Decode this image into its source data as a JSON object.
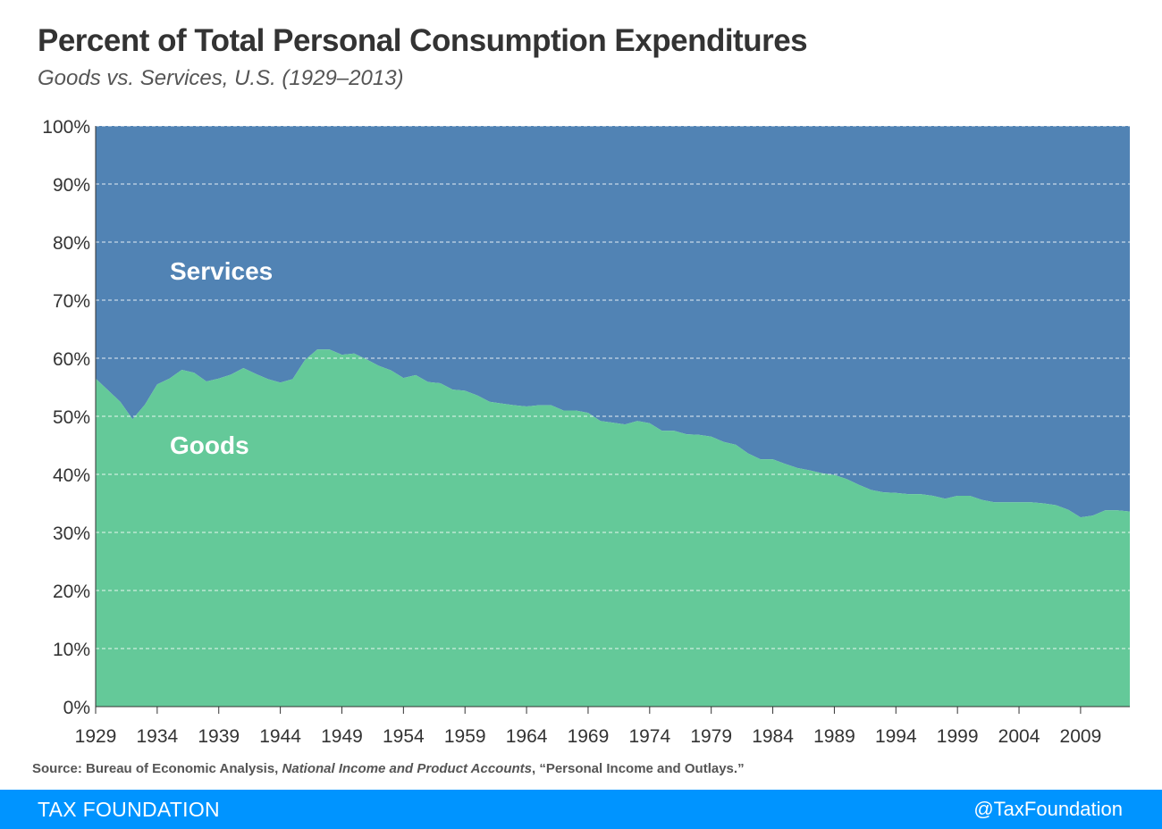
{
  "title": "Percent of Total Personal Consumption Expenditures",
  "subtitle": "Goods vs. Services, U.S. (1929–2013)",
  "source": {
    "prefix": "Source: Bureau of Economic Analysis, ",
    "italic": "National Income and Product Accounts",
    "suffix": ", “Personal Income and Outlays.”"
  },
  "footer": {
    "brand": "TAX FOUNDATION",
    "handle": "@TaxFoundation"
  },
  "colors": {
    "goods": "#64c999",
    "services": "#5183b4",
    "footer": "#0094ff"
  },
  "chart_data": {
    "type": "area",
    "stacked": true,
    "percent_scale": true,
    "x": [
      1929,
      1930,
      1931,
      1932,
      1933,
      1934,
      1935,
      1936,
      1937,
      1938,
      1939,
      1940,
      1941,
      1942,
      1943,
      1944,
      1945,
      1946,
      1947,
      1948,
      1949,
      1950,
      1951,
      1952,
      1953,
      1954,
      1955,
      1956,
      1957,
      1958,
      1959,
      1960,
      1961,
      1962,
      1963,
      1964,
      1965,
      1966,
      1967,
      1968,
      1969,
      1970,
      1971,
      1972,
      1973,
      1974,
      1975,
      1976,
      1977,
      1978,
      1979,
      1980,
      1981,
      1982,
      1983,
      1984,
      1985,
      1986,
      1987,
      1988,
      1989,
      1990,
      1991,
      1992,
      1993,
      1994,
      1995,
      1996,
      1997,
      1998,
      1999,
      2000,
      2001,
      2002,
      2003,
      2004,
      2005,
      2006,
      2007,
      2008,
      2009,
      2010,
      2011,
      2012,
      2013
    ],
    "series": [
      {
        "name": "Goods",
        "values": [
          56.5,
          54.5,
          52.5,
          49.5,
          52,
          55.5,
          56.5,
          58,
          57.5,
          56,
          56.5,
          57.2,
          58.3,
          57.3,
          56.4,
          55.8,
          56.4,
          59.7,
          61.5,
          61.5,
          60.6,
          60.8,
          59.8,
          58.7,
          57.9,
          56.6,
          57.1,
          55.9,
          55.7,
          54.6,
          54.4,
          53.6,
          52.5,
          52.2,
          51.9,
          51.7,
          51.9,
          51.9,
          51.0,
          51.0,
          50.6,
          49.2,
          48.9,
          48.6,
          49.2,
          48.8,
          47.5,
          47.5,
          46.9,
          46.8,
          46.5,
          45.6,
          45.1,
          43.6,
          42.6,
          42.6,
          41.8,
          41.1,
          40.7,
          40.2,
          39.9,
          39.2,
          38.2,
          37.3,
          36.9,
          36.8,
          36.6,
          36.6,
          36.3,
          35.8,
          36.3,
          36.3,
          35.6,
          35.2,
          35.2,
          35.2,
          35.2,
          35.0,
          34.7,
          33.9,
          32.6,
          32.9,
          33.8,
          33.8,
          33.6
        ]
      },
      {
        "name": "Services",
        "values": [
          43.5,
          45.5,
          47.5,
          50.5,
          48,
          44.5,
          43.5,
          42,
          42.5,
          44,
          43.5,
          42.8,
          41.7,
          42.7,
          43.6,
          44.2,
          43.6,
          40.3,
          38.5,
          38.5,
          39.4,
          39.2,
          40.2,
          41.3,
          42.1,
          43.4,
          42.9,
          44.1,
          44.3,
          45.4,
          45.6,
          46.4,
          47.5,
          47.8,
          48.1,
          48.3,
          48.1,
          48.1,
          49.0,
          49.0,
          49.4,
          50.8,
          51.1,
          51.4,
          50.8,
          51.2,
          52.5,
          52.5,
          53.1,
          53.2,
          53.5,
          54.4,
          54.9,
          56.4,
          57.4,
          57.4,
          58.2,
          58.9,
          59.3,
          59.8,
          60.1,
          60.8,
          61.8,
          62.7,
          63.1,
          63.2,
          63.4,
          63.4,
          63.7,
          64.2,
          63.7,
          63.7,
          64.4,
          64.8,
          64.8,
          64.8,
          64.8,
          65.0,
          65.3,
          66.1,
          67.4,
          67.1,
          66.2,
          66.2,
          66.4
        ]
      }
    ],
    "area_labels": [
      "Services",
      "Goods"
    ],
    "x_ticks": [
      "1929",
      "1934",
      "1939",
      "1944",
      "1949",
      "1954",
      "1959",
      "1964",
      "1969",
      "1974",
      "1979",
      "1984",
      "1989",
      "1994",
      "1999",
      "2004",
      "2009"
    ],
    "y_ticks": [
      "0%",
      "10%",
      "20%",
      "30%",
      "40%",
      "50%",
      "60%",
      "70%",
      "80%",
      "90%",
      "100%"
    ],
    "xlim": [
      1929,
      2013
    ],
    "ylim": [
      0,
      100
    ],
    "grid": "horizontal dashed",
    "legend": "none"
  }
}
